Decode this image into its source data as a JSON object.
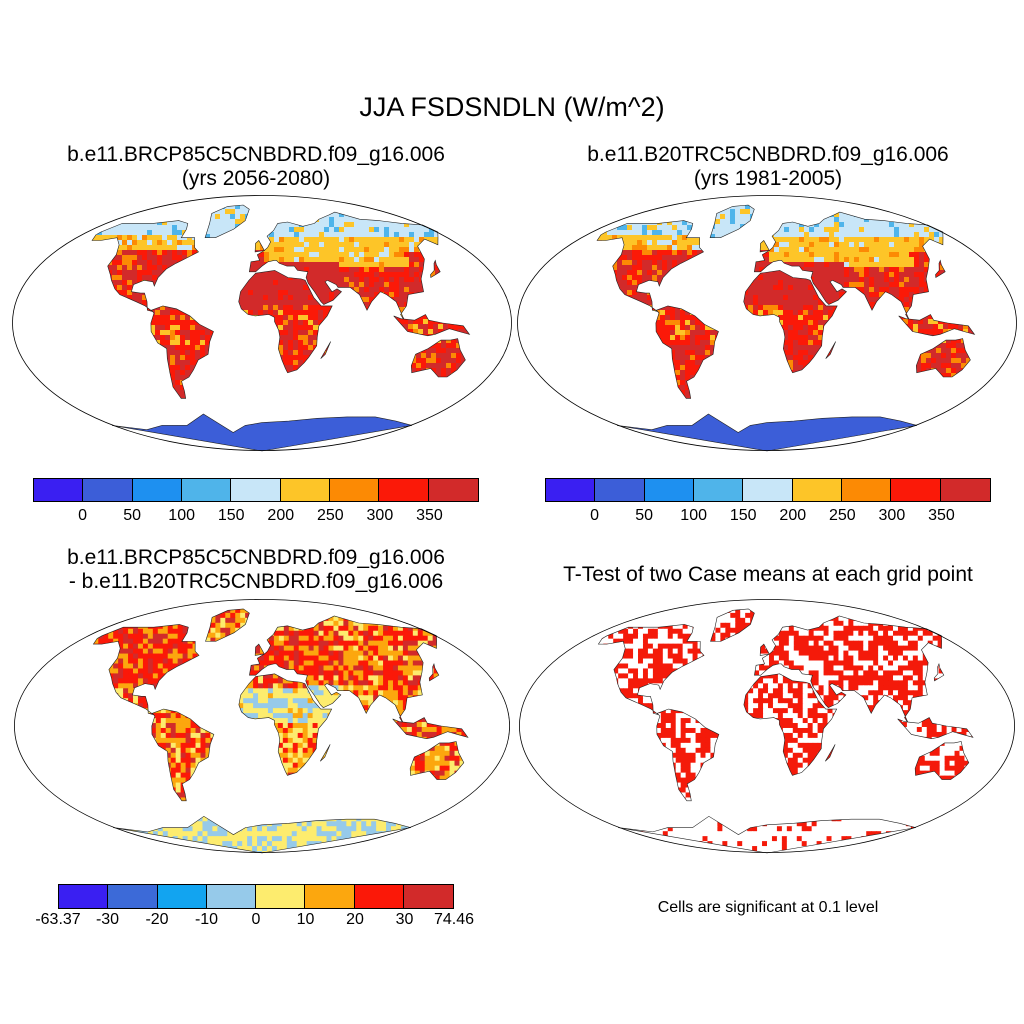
{
  "figure": {
    "title": "JJA FSDSNDLN (W/m^2)"
  },
  "panels": [
    {
      "id": "case",
      "title_line1": "b.e11.BRCP85C5CNBDRD.f09_g16.006",
      "title_line2": "(yrs 2056-2080)",
      "palette": "absolute"
    },
    {
      "id": "control",
      "title_line1": "b.e11.B20TRC5CNBDRD.f09_g16.006",
      "title_line2": "(yrs 1981-2005)",
      "palette": "absolute"
    },
    {
      "id": "difference",
      "title_line1": "b.e11.BRCP85C5CNBDRD.f09_g16.006",
      "title_line2": "- b.e11.B20TRC5CNBDRD.f09_g16.006",
      "palette": "difference"
    },
    {
      "id": "ttest",
      "title_line1": "T-Test of two Case means at each grid point",
      "palette": "significance"
    }
  ],
  "colorbars": {
    "absolute": {
      "colors": [
        "#3a1ff2",
        "#3c5ed8",
        "#1e90f0",
        "#4fb4ea",
        "#c8e6f8",
        "#fdc528",
        "#fc8a04",
        "#fb1908",
        "#d22a2a"
      ],
      "tick_labels": [
        "0",
        "50",
        "100",
        "150",
        "200",
        "250",
        "300",
        "350"
      ]
    },
    "difference": {
      "colors": [
        "#3a1ff2",
        "#3c6ad8",
        "#12a4f0",
        "#96caea",
        "#fdec6e",
        "#fca70e",
        "#fb1808",
        "#d22a2a"
      ],
      "tick_labels": [
        "-63.37",
        "-30",
        "-20",
        "-10",
        "0",
        "10",
        "20",
        "30",
        "74.46"
      ]
    }
  },
  "significance": {
    "color": "#f41a0a",
    "note": "Cells are significant at 0.1 level"
  }
}
